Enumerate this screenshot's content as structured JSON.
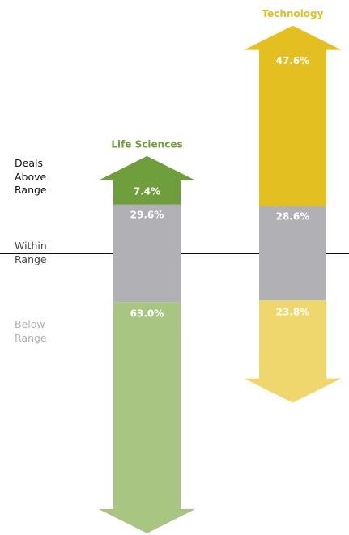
{
  "chart_data": {
    "type": "arrow",
    "categories": [
      "Life Sciences",
      "Technology"
    ],
    "series": [
      {
        "name": "Deals Above Range",
        "colors": [
          "#6f9e3c",
          "#e3bf22"
        ],
        "label_color": "#111111",
        "values": [
          7.4,
          47.6
        ],
        "value_labels": [
          "7.4%",
          "47.6%"
        ]
      },
      {
        "name": "Within Range",
        "color": "#b1b0b4",
        "label_color": "#444444",
        "values": [
          29.6,
          28.6
        ],
        "value_labels": [
          "29.6%",
          "28.6%"
        ]
      },
      {
        "name": "Below Range",
        "colors": [
          "#a8c582",
          "#efd76e"
        ],
        "label_color": "#b1b0b4",
        "values": [
          63,
          23.8
        ],
        "value_labels": [
          "63.0%",
          "23.8%"
        ]
      }
    ]
  }
}
